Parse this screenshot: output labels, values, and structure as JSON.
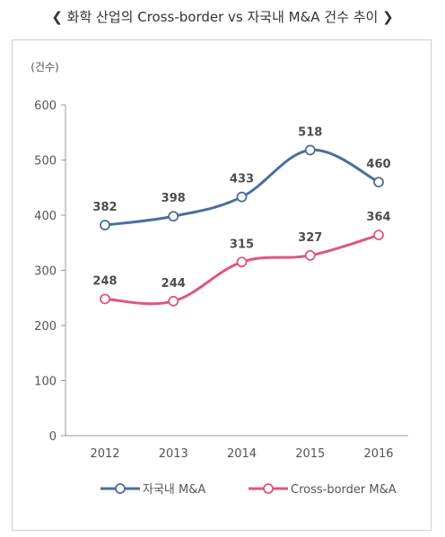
{
  "chart_data": {
    "type": "line",
    "title": "❮ 화학 산업의 Cross-border vs 자국내 M&A 건수 추이 ❯",
    "ylabel": "(건수)",
    "xlabel": "",
    "ylim": [
      0,
      600
    ],
    "yticks": [
      0,
      100,
      200,
      300,
      400,
      500,
      600
    ],
    "categories": [
      "2012",
      "2013",
      "2014",
      "2015",
      "2016"
    ],
    "legend_position": "bottom",
    "series": [
      {
        "name": "자국내 M&A",
        "color": "#4a6f9c",
        "values": [
          382,
          398,
          433,
          518,
          460
        ]
      },
      {
        "name": "Cross-border M&A",
        "color": "#e0567c",
        "values": [
          248,
          244,
          315,
          327,
          364
        ]
      }
    ]
  }
}
